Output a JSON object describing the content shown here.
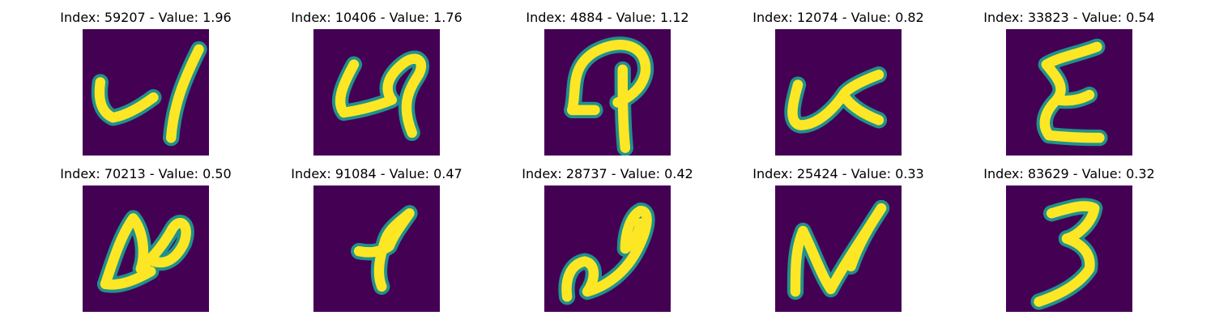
{
  "chart_data": {
    "type": "image-grid",
    "colormap": "viridis",
    "background_color": "#440154",
    "stroke_color": "#fde725",
    "edge_color": "#21918c",
    "panels": [
      {
        "title": "Index: 59207 - Value: 1.96",
        "index": 59207,
        "value": 1.96,
        "shape": "4"
      },
      {
        "title": "Index: 10406 - Value: 1.76",
        "index": 10406,
        "value": 1.76,
        "shape": "4-loop"
      },
      {
        "title": "Index: 4884 - Value: 1.12",
        "index": 4884,
        "value": 1.12,
        "shape": "arch"
      },
      {
        "title": "Index: 12074 - Value: 0.82",
        "index": 12074,
        "value": 0.82,
        "shape": "k"
      },
      {
        "title": "Index: 33823 - Value: 0.54",
        "index": 33823,
        "value": 0.54,
        "shape": "E"
      },
      {
        "title": "Index: 70213 - Value: 0.50",
        "index": 70213,
        "value": 0.5,
        "shape": "loops"
      },
      {
        "title": "Index: 91084 - Value: 0.47",
        "index": 91084,
        "value": 0.47,
        "shape": "blob"
      },
      {
        "title": "Index: 28737 - Value: 0.42",
        "index": 28737,
        "value": 0.42,
        "shape": "slant-loop"
      },
      {
        "title": "Index: 25424 - Value: 0.33",
        "index": 25424,
        "value": 0.33,
        "shape": "N"
      },
      {
        "title": "Index: 83629 - Value: 0.32",
        "index": 83629,
        "value": 0.32,
        "shape": "3"
      }
    ]
  }
}
